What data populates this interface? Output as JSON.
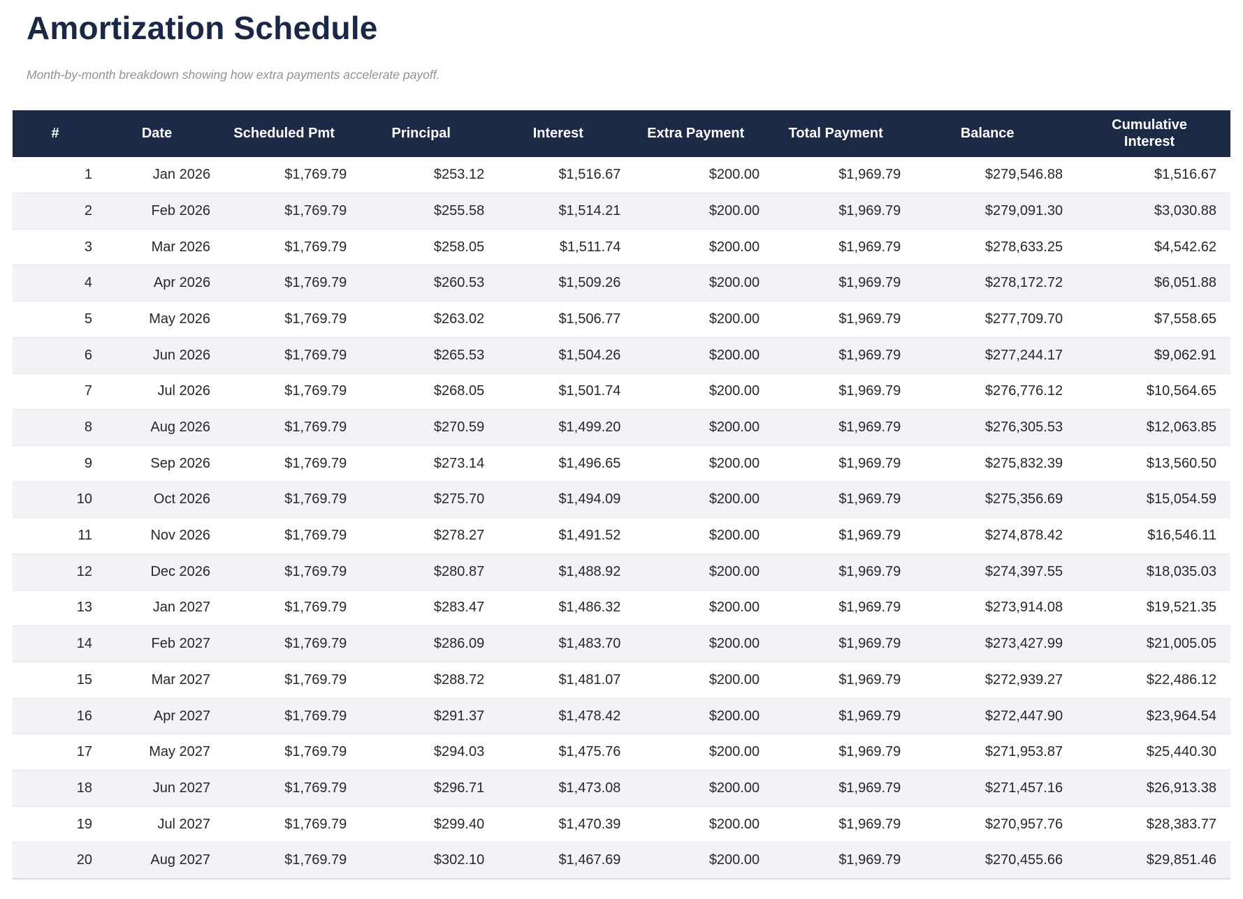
{
  "page": {
    "title": "Amortization Schedule",
    "subtitle": "Month-by-month breakdown showing how extra payments accelerate payoff."
  },
  "colors": {
    "header_background": "#1d2a46",
    "header_text": "#ffffff",
    "title_text": "#1a2745",
    "subtitle_text": "#8e929b",
    "row_alt_background": "#f2f3f6",
    "row_background": "#ffffff",
    "body_text": "#26272c"
  },
  "table": {
    "columns": [
      "#",
      "Date",
      "Scheduled Pmt",
      "Principal",
      "Interest",
      "Extra Payment",
      "Total Payment",
      "Balance",
      "Cumulative Interest"
    ],
    "row_keys": [
      "row-number",
      "date",
      "scheduled-pmt",
      "principal",
      "interest",
      "extra-payment",
      "total-payment",
      "balance",
      "cumulative-interest"
    ],
    "rows": [
      [
        "1",
        "Jan 2026",
        "$1,769.79",
        "$253.12",
        "$1,516.67",
        "$200.00",
        "$1,969.79",
        "$279,546.88",
        "$1,516.67"
      ],
      [
        "2",
        "Feb 2026",
        "$1,769.79",
        "$255.58",
        "$1,514.21",
        "$200.00",
        "$1,969.79",
        "$279,091.30",
        "$3,030.88"
      ],
      [
        "3",
        "Mar 2026",
        "$1,769.79",
        "$258.05",
        "$1,511.74",
        "$200.00",
        "$1,969.79",
        "$278,633.25",
        "$4,542.62"
      ],
      [
        "4",
        "Apr 2026",
        "$1,769.79",
        "$260.53",
        "$1,509.26",
        "$200.00",
        "$1,969.79",
        "$278,172.72",
        "$6,051.88"
      ],
      [
        "5",
        "May 2026",
        "$1,769.79",
        "$263.02",
        "$1,506.77",
        "$200.00",
        "$1,969.79",
        "$277,709.70",
        "$7,558.65"
      ],
      [
        "6",
        "Jun 2026",
        "$1,769.79",
        "$265.53",
        "$1,504.26",
        "$200.00",
        "$1,969.79",
        "$277,244.17",
        "$9,062.91"
      ],
      [
        "7",
        "Jul 2026",
        "$1,769.79",
        "$268.05",
        "$1,501.74",
        "$200.00",
        "$1,969.79",
        "$276,776.12",
        "$10,564.65"
      ],
      [
        "8",
        "Aug 2026",
        "$1,769.79",
        "$270.59",
        "$1,499.20",
        "$200.00",
        "$1,969.79",
        "$276,305.53",
        "$12,063.85"
      ],
      [
        "9",
        "Sep 2026",
        "$1,769.79",
        "$273.14",
        "$1,496.65",
        "$200.00",
        "$1,969.79",
        "$275,832.39",
        "$13,560.50"
      ],
      [
        "10",
        "Oct 2026",
        "$1,769.79",
        "$275.70",
        "$1,494.09",
        "$200.00",
        "$1,969.79",
        "$275,356.69",
        "$15,054.59"
      ],
      [
        "11",
        "Nov 2026",
        "$1,769.79",
        "$278.27",
        "$1,491.52",
        "$200.00",
        "$1,969.79",
        "$274,878.42",
        "$16,546.11"
      ],
      [
        "12",
        "Dec 2026",
        "$1,769.79",
        "$280.87",
        "$1,488.92",
        "$200.00",
        "$1,969.79",
        "$274,397.55",
        "$18,035.03"
      ],
      [
        "13",
        "Jan 2027",
        "$1,769.79",
        "$283.47",
        "$1,486.32",
        "$200.00",
        "$1,969.79",
        "$273,914.08",
        "$19,521.35"
      ],
      [
        "14",
        "Feb 2027",
        "$1,769.79",
        "$286.09",
        "$1,483.70",
        "$200.00",
        "$1,969.79",
        "$273,427.99",
        "$21,005.05"
      ],
      [
        "15",
        "Mar 2027",
        "$1,769.79",
        "$288.72",
        "$1,481.07",
        "$200.00",
        "$1,969.79",
        "$272,939.27",
        "$22,486.12"
      ],
      [
        "16",
        "Apr 2027",
        "$1,769.79",
        "$291.37",
        "$1,478.42",
        "$200.00",
        "$1,969.79",
        "$272,447.90",
        "$23,964.54"
      ],
      [
        "17",
        "May 2027",
        "$1,769.79",
        "$294.03",
        "$1,475.76",
        "$200.00",
        "$1,969.79",
        "$271,953.87",
        "$25,440.30"
      ],
      [
        "18",
        "Jun 2027",
        "$1,769.79",
        "$296.71",
        "$1,473.08",
        "$200.00",
        "$1,969.79",
        "$271,457.16",
        "$26,913.38"
      ],
      [
        "19",
        "Jul 2027",
        "$1,769.79",
        "$299.40",
        "$1,470.39",
        "$200.00",
        "$1,969.79",
        "$270,957.76",
        "$28,383.77"
      ],
      [
        "20",
        "Aug 2027",
        "$1,769.79",
        "$302.10",
        "$1,467.69",
        "$200.00",
        "$1,969.79",
        "$270,455.66",
        "$29,851.46"
      ]
    ]
  }
}
